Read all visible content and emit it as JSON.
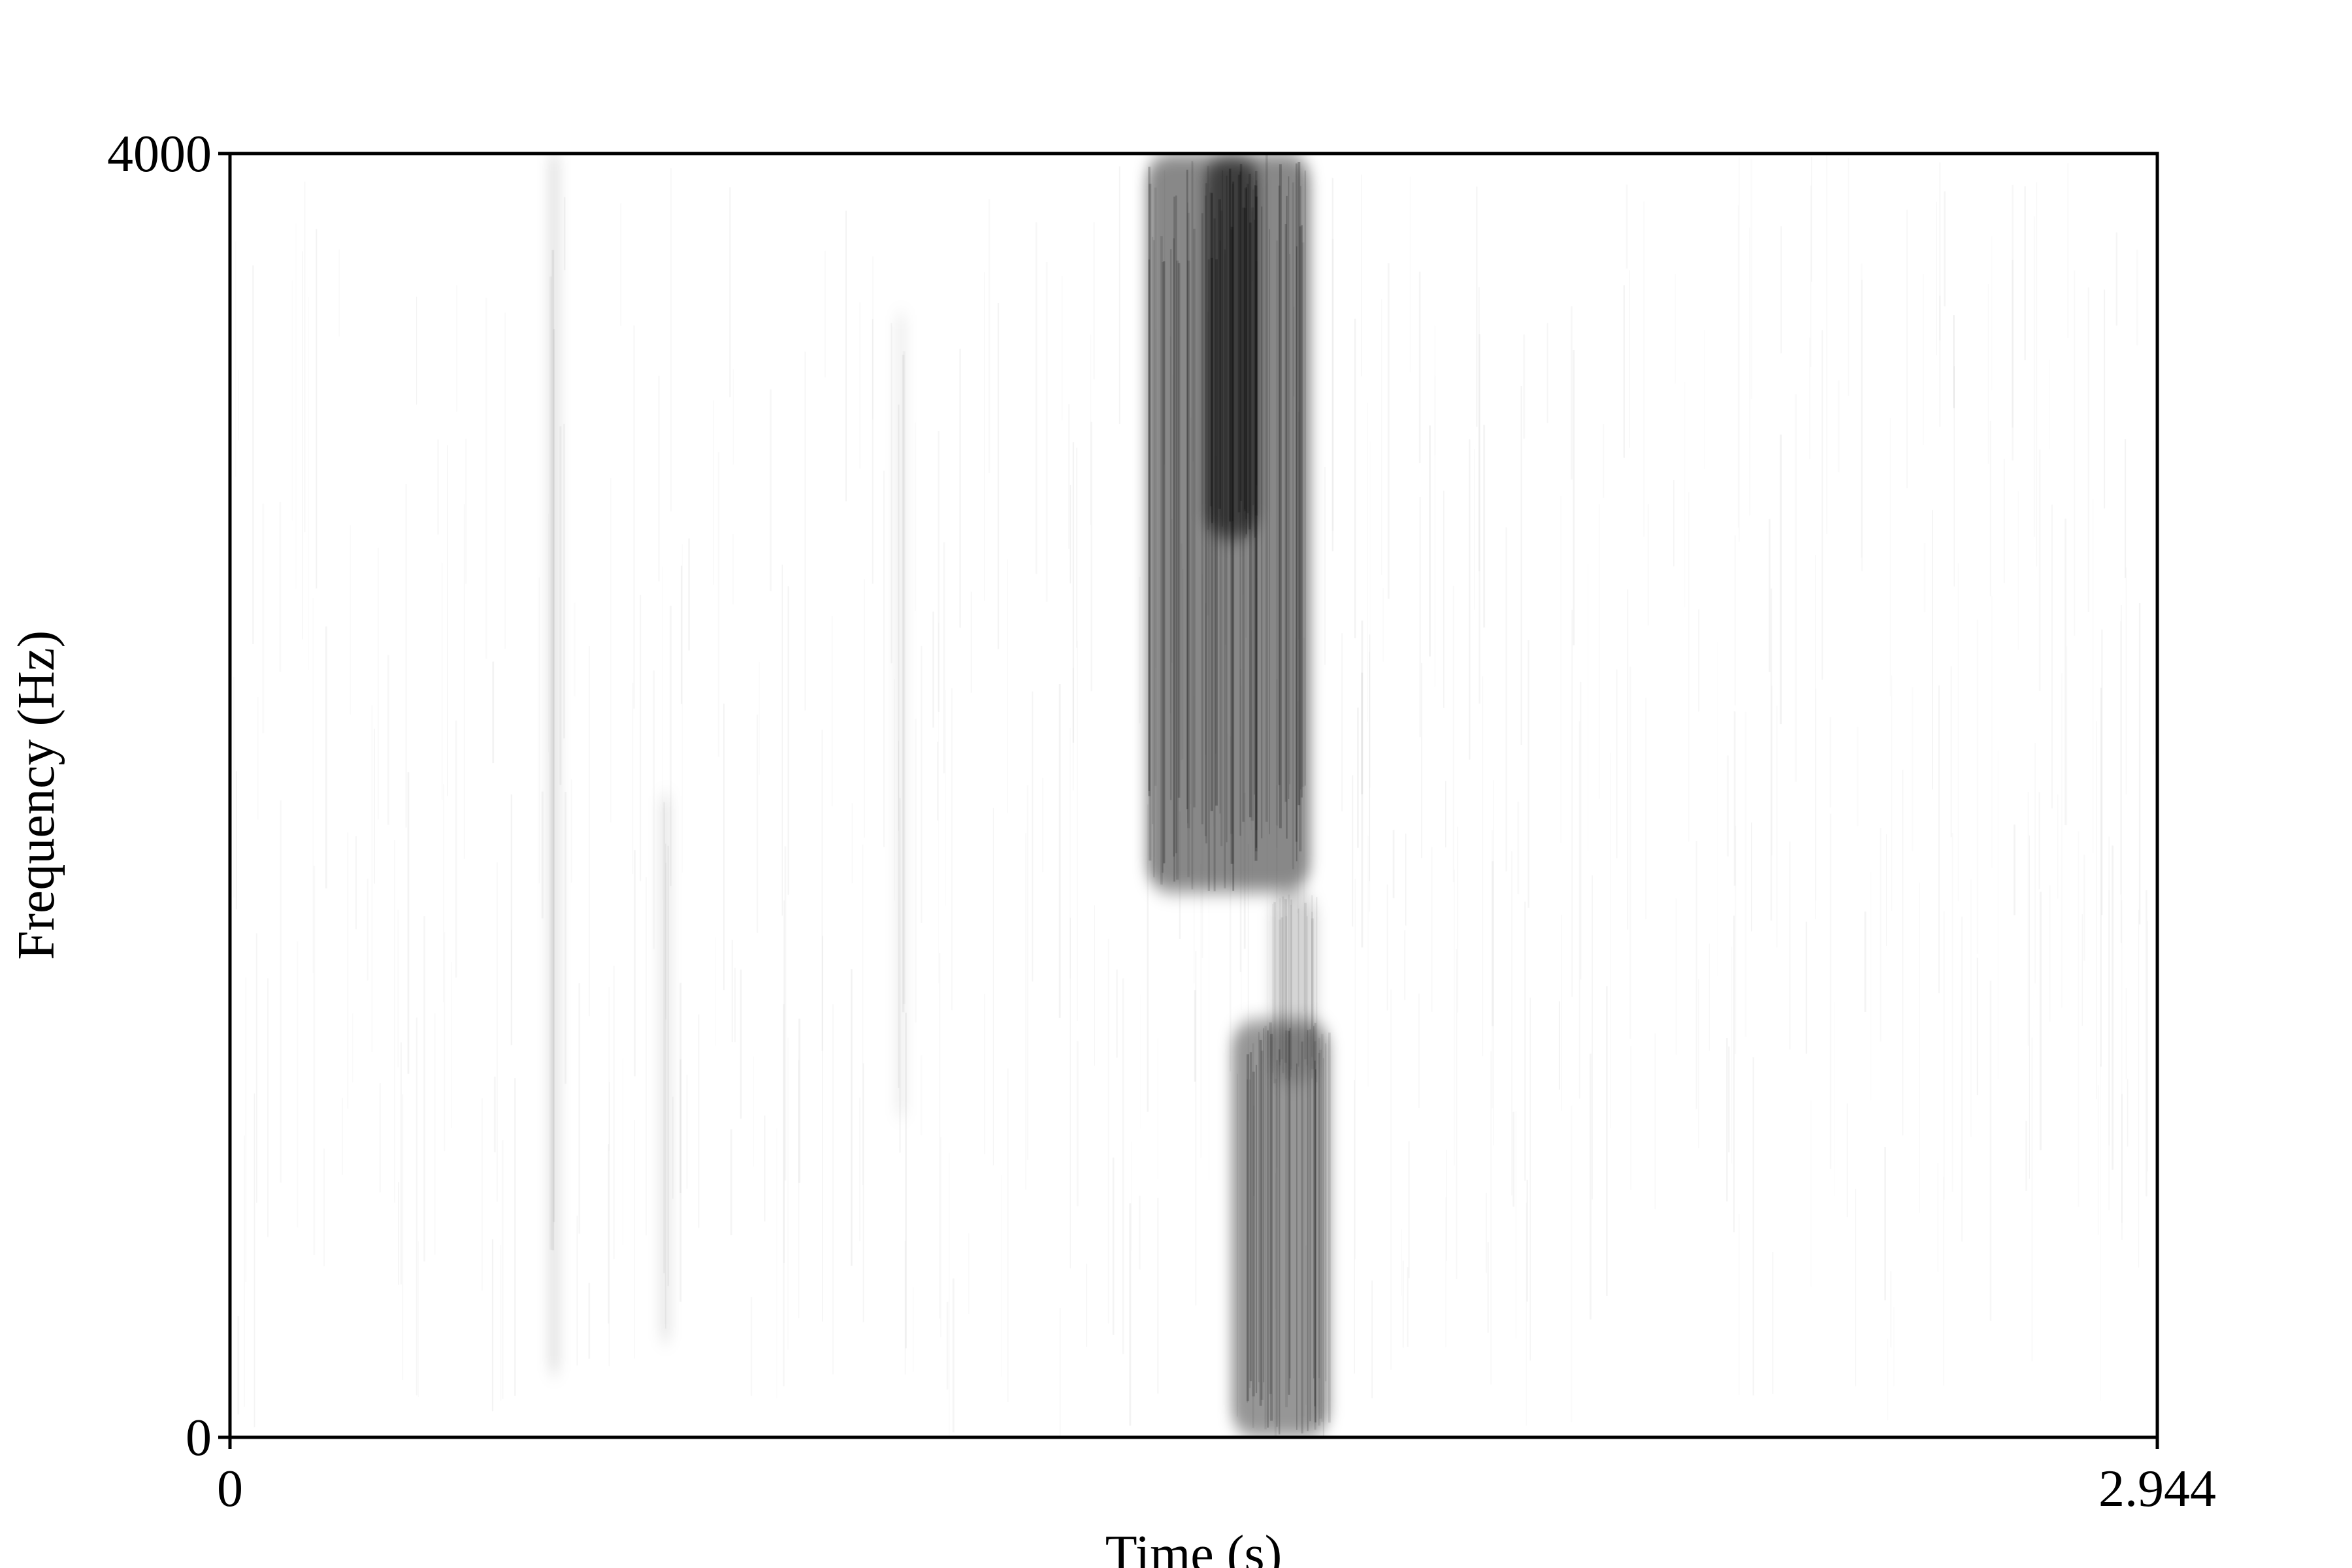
{
  "chart_data": {
    "type": "heatmap",
    "title": "",
    "xlabel": "Time (s)",
    "ylabel": "Frequency (Hz)",
    "xlim": [
      0,
      2.944
    ],
    "ylim": [
      0,
      4000
    ],
    "x_ticks": [
      "0",
      "2.944"
    ],
    "y_ticks": [
      "0",
      "4000"
    ],
    "grid": false,
    "colormap": "grayscale (white = low energy, black = high energy)",
    "energy_regions": [
      {
        "t_start": 1.4,
        "t_end": 1.65,
        "f_low": 1700,
        "f_high": 4000,
        "intensity": 0.85
      },
      {
        "t_start": 1.49,
        "t_end": 1.57,
        "f_low": 2800,
        "f_high": 4000,
        "intensity": 1.0
      },
      {
        "t_start": 1.53,
        "t_end": 1.68,
        "f_low": 0,
        "f_high": 1300,
        "intensity": 0.75
      },
      {
        "t_start": 1.59,
        "t_end": 1.66,
        "f_low": 1100,
        "f_high": 1700,
        "intensity": 0.3
      },
      {
        "t_start": 0.49,
        "t_end": 0.5,
        "f_low": 200,
        "f_high": 4000,
        "intensity": 0.35
      },
      {
        "t_start": 0.66,
        "t_end": 0.67,
        "f_low": 300,
        "f_high": 2000,
        "intensity": 0.3
      },
      {
        "t_start": 1.02,
        "t_end": 1.03,
        "f_low": 1000,
        "f_high": 3500,
        "intensity": 0.2
      }
    ]
  }
}
